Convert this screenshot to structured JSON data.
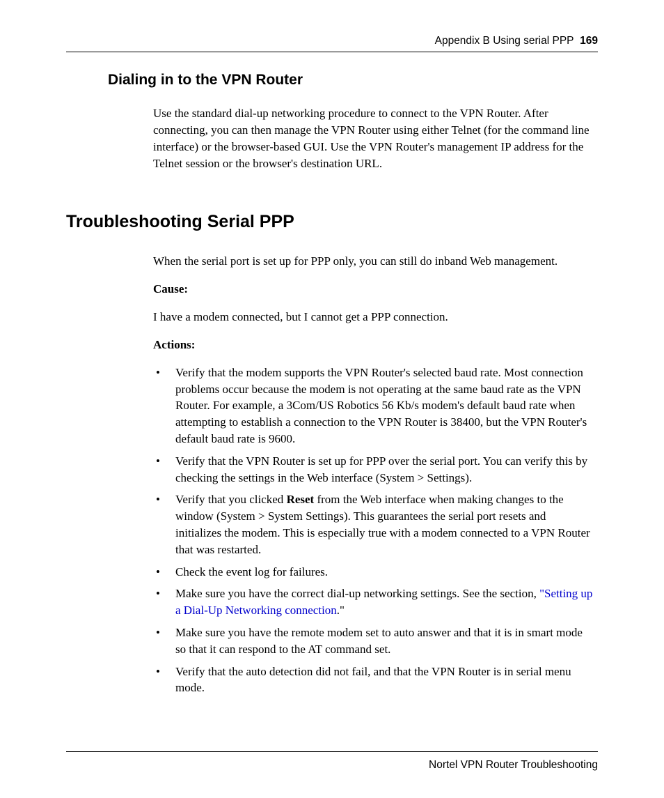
{
  "header": {
    "appendix": "Appendix B  Using serial PPP",
    "page_number": "169"
  },
  "section1": {
    "title": "Dialing in to the VPN Router",
    "para": "Use the standard dial-up networking procedure to connect to the VPN Router. After connecting, you can then manage the VPN Router using either Telnet (for the command line interface) or the browser-based GUI. Use the VPN Router's management IP address for the Telnet session or the browser's destination URL."
  },
  "section2": {
    "title": "Troubleshooting Serial PPP",
    "intro": "When the serial port is set up for PPP only, you can still do inband Web management.",
    "cause_label": "Cause:",
    "cause_text": "I have a modem connected, but I cannot get a PPP connection.",
    "actions_label": "Actions:",
    "bullets": {
      "b1": "Verify that the modem supports the VPN Router's selected baud rate. Most connection problems occur because the modem is not operating at the same baud rate as the VPN Router. For example, a 3Com/US Robotics 56 Kb/s modem's default baud rate when attempting to establish a connection to the VPN Router is 38400, but the VPN Router's default baud rate is 9600.",
      "b2": "Verify that the VPN Router is set up for PPP over the serial port. You can verify this by checking the settings in the Web interface (System > Settings).",
      "b3_pre": "Verify that you clicked ",
      "b3_bold": "Reset",
      "b3_post": " from the Web interface when making changes to the window (System > System Settings). This guarantees the serial port resets and initializes the modem. This is especially true with a modem connected to a VPN Router that was restarted.",
      "b4": "Check the event log for failures.",
      "b5_pre": "Make sure you have the correct dial-up networking settings. See the section, ",
      "b5_link": "\"Setting up a Dial-Up Networking connection",
      "b5_post": ".\"",
      "b6": "Make sure you have the remote modem set to auto answer and that it is in smart mode so that it can respond to the AT command set.",
      "b7": "Verify that the auto detection did not fail, and that the VPN Router is in serial menu mode."
    }
  },
  "footer": {
    "text": "Nortel VPN Router Troubleshooting"
  }
}
